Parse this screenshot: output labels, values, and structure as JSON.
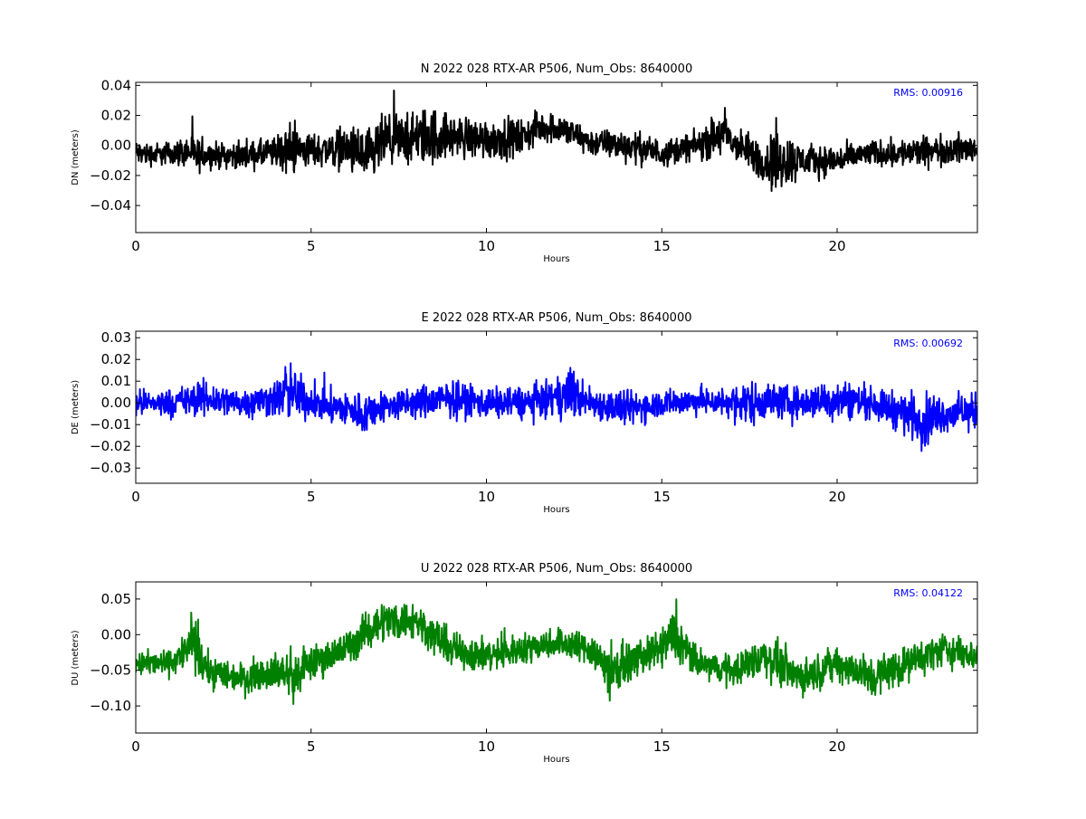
{
  "chart_data": [
    {
      "type": "line",
      "title": "N 2022 028 RTX-AR  P506, Num_Obs: 8640000",
      "xlabel": "Hours",
      "ylabel": "DN (meters)",
      "xlim": [
        0,
        24
      ],
      "ylim": [
        -0.058,
        0.042
      ],
      "xticks": [
        0,
        5,
        10,
        15,
        20
      ],
      "xtick_labels": [
        "0",
        "5",
        "10",
        "15",
        "20"
      ],
      "yticks": [
        -0.04,
        -0.02,
        0.0,
        0.02,
        0.04
      ],
      "ytick_labels": [
        "−0.04",
        "−0.02",
        "0.00",
        "0.02",
        "0.04"
      ],
      "annotation": "RMS:  0.00916",
      "grid": false,
      "series": [
        {
          "color": "#000000",
          "x": [
            0,
            0.5,
            1,
            1.6,
            1.7,
            2,
            3,
            4,
            4.4,
            5,
            6,
            6.7,
            7,
            8,
            8.4,
            9,
            10,
            11,
            11.5,
            12,
            13,
            14,
            15,
            16,
            16.8,
            17,
            18,
            18.2,
            19,
            20,
            21,
            22,
            23,
            24
          ],
          "center": [
            -0.005,
            -0.006,
            -0.005,
            -0.004,
            -0.008,
            -0.006,
            -0.007,
            -0.005,
            -0.002,
            -0.003,
            -0.002,
            -0.01,
            0.002,
            0.005,
            0.006,
            0.006,
            0.004,
            0.005,
            0.012,
            0.012,
            0.002,
            0.0,
            -0.005,
            0.0,
            0.008,
            0.002,
            -0.012,
            -0.01,
            -0.01,
            -0.01,
            -0.005,
            -0.005,
            -0.003,
            -0.002
          ],
          "amp": [
            0.012,
            0.011,
            0.011,
            0.016,
            0.018,
            0.012,
            0.012,
            0.015,
            0.025,
            0.015,
            0.02,
            0.03,
            0.025,
            0.025,
            0.03,
            0.02,
            0.02,
            0.018,
            0.015,
            0.015,
            0.013,
            0.015,
            0.013,
            0.013,
            0.025,
            0.016,
            0.02,
            0.035,
            0.016,
            0.014,
            0.012,
            0.014,
            0.014,
            0.014
          ]
        }
      ]
    },
    {
      "type": "line",
      "title": "E 2022 028 RTX-AR  P506, Num_Obs: 8640000",
      "xlabel": "Hours",
      "ylabel": "DE (meters)",
      "xlim": [
        0,
        24
      ],
      "ylim": [
        -0.037,
        0.033
      ],
      "xticks": [
        0,
        5,
        10,
        15,
        20
      ],
      "xtick_labels": [
        "0",
        "5",
        "10",
        "15",
        "20"
      ],
      "yticks": [
        -0.03,
        -0.02,
        -0.01,
        0.0,
        0.01,
        0.02,
        0.03
      ],
      "ytick_labels": [
        "−0.03",
        "−0.02",
        "−0.01",
        "0.00",
        "0.01",
        "0.02",
        "0.03"
      ],
      "annotation": "RMS:  0.00692",
      "grid": false,
      "series": [
        {
          "color": "#0000ff",
          "x": [
            0,
            1,
            2,
            3,
            4,
            4.4,
            5,
            6,
            6.5,
            7,
            8,
            9,
            10,
            11,
            12,
            12.3,
            13,
            14,
            15,
            16,
            17,
            17.4,
            18,
            19,
            20,
            21,
            22,
            22.5,
            23,
            24
          ],
          "center": [
            0.0,
            0.0,
            0.002,
            0.0,
            0.002,
            0.005,
            0.0,
            -0.003,
            -0.005,
            -0.002,
            0.0,
            0.002,
            0.0,
            0.0,
            0.002,
            0.005,
            0.0,
            -0.003,
            0.0,
            0.001,
            0.0,
            0.0,
            0.001,
            0.0,
            0.002,
            0.0,
            -0.005,
            -0.008,
            -0.005,
            -0.004
          ],
          "amp": [
            0.008,
            0.009,
            0.012,
            0.009,
            0.012,
            0.02,
            0.01,
            0.012,
            0.014,
            0.01,
            0.011,
            0.012,
            0.01,
            0.011,
            0.012,
            0.018,
            0.01,
            0.012,
            0.009,
            0.009,
            0.01,
            0.016,
            0.012,
            0.01,
            0.014,
            0.01,
            0.014,
            0.018,
            0.012,
            0.012
          ]
        }
      ]
    },
    {
      "type": "line",
      "title": "U 2022 028 RTX-AR  P506, Num_Obs: 8640000",
      "xlabel": "Hours",
      "ylabel": "DU (meters)",
      "xlim": [
        0,
        24
      ],
      "ylim": [
        -0.138,
        0.074
      ],
      "xticks": [
        0,
        5,
        10,
        15,
        20
      ],
      "xtick_labels": [
        "0",
        "5",
        "10",
        "15",
        "20"
      ],
      "yticks": [
        -0.1,
        -0.05,
        0.0,
        0.05
      ],
      "ytick_labels": [
        "−0.10",
        "−0.05",
        "0.00",
        "0.05"
      ],
      "annotation": "RMS:  0.04122",
      "grid": false,
      "series": [
        {
          "color": "#008000",
          "x": [
            0,
            1,
            1.5,
            1.6,
            2,
            3,
            4,
            4.5,
            5,
            6,
            7,
            8,
            9,
            10,
            11,
            12,
            13,
            13.5,
            14,
            15,
            15.3,
            16,
            17,
            18,
            19,
            20,
            21,
            22,
            23,
            24
          ],
          "center": [
            -0.04,
            -0.04,
            -0.02,
            -0.01,
            -0.05,
            -0.06,
            -0.05,
            -0.06,
            -0.04,
            -0.02,
            0.02,
            0.02,
            -0.02,
            -0.03,
            -0.02,
            -0.01,
            -0.02,
            -0.05,
            -0.04,
            -0.02,
            0.0,
            -0.04,
            -0.05,
            -0.03,
            -0.06,
            -0.04,
            -0.06,
            -0.04,
            -0.02,
            -0.03
          ],
          "amp": [
            0.025,
            0.025,
            0.04,
            0.06,
            0.035,
            0.03,
            0.035,
            0.05,
            0.035,
            0.035,
            0.04,
            0.04,
            0.035,
            0.035,
            0.03,
            0.03,
            0.035,
            0.06,
            0.035,
            0.035,
            0.06,
            0.03,
            0.03,
            0.045,
            0.035,
            0.035,
            0.045,
            0.035,
            0.035,
            0.03
          ]
        }
      ]
    }
  ]
}
